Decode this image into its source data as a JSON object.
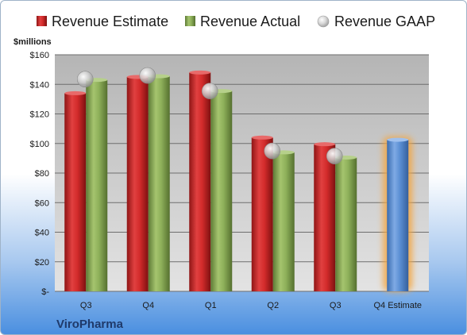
{
  "chart_data": {
    "type": "bar",
    "company": "ViroPharma",
    "unit_label": "$millions",
    "categories": [
      "Q3",
      "Q4",
      "Q1",
      "Q2",
      "Q3",
      "Q4 Estimate"
    ],
    "series": [
      {
        "name": "Revenue Estimate",
        "color": "#d32b2b",
        "values": [
          134,
          145,
          148,
          104,
          99.5,
          null
        ]
      },
      {
        "name": "Revenue Actual",
        "color": "#8eb05a",
        "values": [
          143,
          145.5,
          135.5,
          94,
          90.5,
          102.5
        ]
      },
      {
        "name": "Revenue GAAP",
        "color": "#c8c8c8",
        "marker": "circle",
        "values": [
          143.5,
          146,
          135.5,
          95,
          91.5,
          null
        ]
      }
    ],
    "highlight": {
      "category": "Q4 Estimate",
      "color": "#5b8fd4",
      "glow": "#f4a640"
    },
    "ylim": [
      0,
      160
    ],
    "yticks": [
      0,
      20,
      40,
      60,
      80,
      100,
      120,
      140,
      160
    ],
    "ytick_labels": [
      "$-",
      "$20",
      "$40",
      "$60",
      "$80",
      "$100",
      "$120",
      "$140",
      "$160"
    ],
    "legend_position": "top",
    "grid": true
  }
}
